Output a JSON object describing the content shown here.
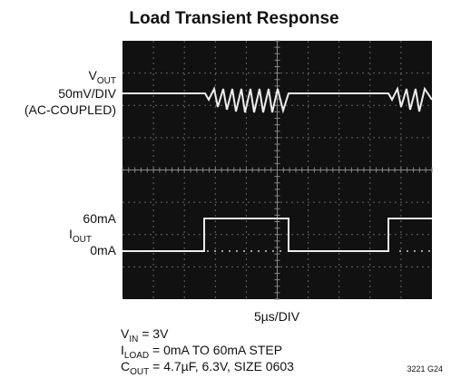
{
  "title": "Load Transient Response",
  "vout_label": {
    "main": "V",
    "sub": "OUT"
  },
  "vout_scale": "50mV/DIV",
  "vout_coupling": "(AC-COUPLED)",
  "iout_high": "60mA",
  "iout_label": {
    "main": "I",
    "sub": "OUT"
  },
  "iout_low": "0mA",
  "time_scale": "5µs/DIV",
  "notes": [
    {
      "main": "V",
      "sub": "IN",
      "rest": " = 3V"
    },
    {
      "main": "I",
      "sub": "LOAD",
      "rest": " = 0mA TO 60mA STEP"
    },
    {
      "main": "C",
      "sub": "OUT",
      "rest": " = 4.7µF, 6.3V, SIZE 0603"
    }
  ],
  "figure_id": "3221 G24"
}
